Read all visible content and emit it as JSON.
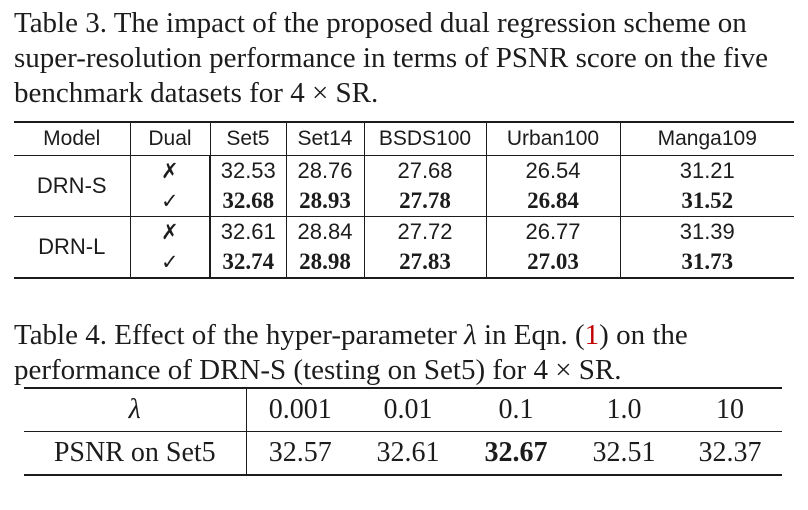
{
  "table3": {
    "caption": "Table 3. The impact of the proposed dual regression scheme on super-resolution performance in terms of PSNR score on the five benchmark datasets for 4 × SR.",
    "headers": [
      "Model",
      "Dual",
      "Set5",
      "Set14",
      "BSDS100",
      "Urban100",
      "Manga109"
    ],
    "groups": [
      {
        "model": "DRN-S",
        "rows": [
          {
            "dual": "✗",
            "values": [
              "32.53",
              "28.76",
              "27.68",
              "26.54",
              "31.21"
            ],
            "bold": false
          },
          {
            "dual": "✓",
            "values": [
              "32.68",
              "28.93",
              "27.78",
              "26.84",
              "31.52"
            ],
            "bold": true
          }
        ]
      },
      {
        "model": "DRN-L",
        "rows": [
          {
            "dual": "✗",
            "values": [
              "32.61",
              "28.84",
              "27.72",
              "26.77",
              "31.39"
            ],
            "bold": false
          },
          {
            "dual": "✓",
            "values": [
              "32.74",
              "28.98",
              "27.83",
              "27.03",
              "31.73"
            ],
            "bold": true
          }
        ]
      }
    ]
  },
  "table4": {
    "caption_pre": "Table 4. Effect of the hyper-parameter ",
    "caption_lambda": "λ",
    "caption_mid": " in Eqn. (",
    "caption_ref": "1",
    "caption_post": ") on the performance of DRN-S (testing on Set5) for 4 × SR.",
    "row_header": "λ",
    "lambdas": [
      "0.001",
      "0.01",
      "0.1",
      "1.0",
      "10"
    ],
    "metric_label": "PSNR on Set5",
    "psnr": [
      "32.57",
      "32.61",
      "32.67",
      "32.51",
      "32.37"
    ],
    "best_index": 2
  }
}
